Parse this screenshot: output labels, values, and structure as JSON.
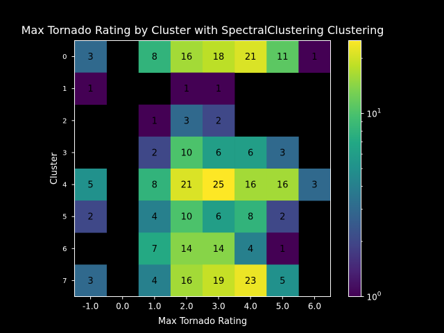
{
  "chart_data": {
    "type": "heatmap",
    "title": "Max Tornado Rating by Cluster with SpectralClustering Clustering",
    "xlabel": "Max Tornado Rating",
    "ylabel": "Cluster",
    "x_categories": [
      "-1.0",
      "0.0",
      "1.0",
      "2.0",
      "3.0",
      "4.0",
      "5.0",
      "6.0"
    ],
    "y_categories": [
      "0",
      "1",
      "2",
      "3",
      "4",
      "5",
      "6",
      "7"
    ],
    "values": [
      [
        3,
        null,
        8,
        16,
        18,
        21,
        11,
        1
      ],
      [
        1,
        null,
        null,
        1,
        1,
        null,
        null,
        null
      ],
      [
        null,
        null,
        1,
        3,
        2,
        null,
        null,
        null
      ],
      [
        null,
        null,
        2,
        10,
        6,
        6,
        3,
        null
      ],
      [
        5,
        null,
        8,
        21,
        25,
        16,
        16,
        3
      ],
      [
        2,
        null,
        4,
        10,
        6,
        8,
        2,
        null
      ],
      [
        null,
        null,
        7,
        14,
        14,
        4,
        1,
        null
      ],
      [
        3,
        null,
        4,
        16,
        19,
        23,
        5,
        null
      ]
    ],
    "color_scale": "log",
    "colormap": "viridis",
    "vmin": 1,
    "vmax": 25,
    "colorbar": {
      "major_ticks": [
        {
          "value": 1,
          "base": "10",
          "exp": "0"
        },
        {
          "value": 10,
          "base": "10",
          "exp": "1"
        }
      ]
    },
    "missing_color": "#000000",
    "grid": false
  }
}
